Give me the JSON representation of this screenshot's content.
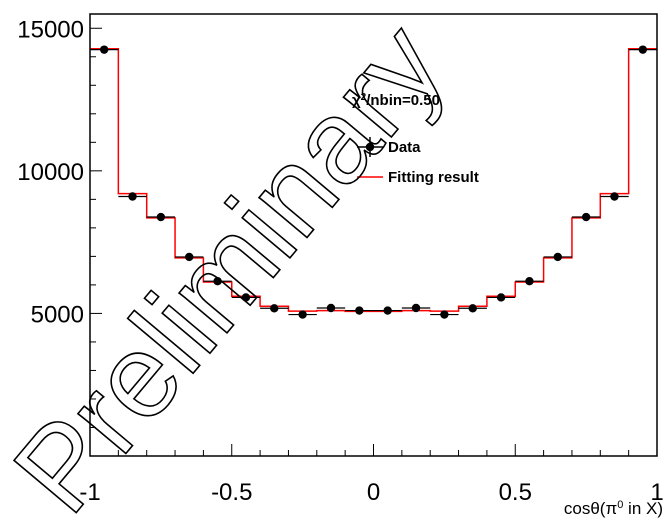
{
  "chart_data": {
    "type": "histogram",
    "title": "",
    "xlabel": "cosθ(π⁰ in X)",
    "xlabel_parts": {
      "pre": "cosθ(π",
      "sup": "0",
      "post": " in X)"
    },
    "ylabel": "",
    "xlim": [
      -1,
      1
    ],
    "ylim": [
      0,
      15500
    ],
    "x_ticks": [
      -1,
      -0.5,
      0,
      0.5,
      1
    ],
    "x_tick_labels": [
      "-1",
      "-0.5",
      "0",
      "0.5",
      "1"
    ],
    "y_ticks": [
      5000,
      10000,
      15000
    ],
    "y_tick_labels": [
      "5000",
      "10000",
      "15000"
    ],
    "bin_edges": [
      -1,
      -0.9,
      -0.8,
      -0.7,
      -0.6,
      -0.5,
      -0.4,
      -0.3,
      -0.2,
      -0.1,
      0,
      0.1,
      0.2,
      0.3,
      0.4,
      0.5,
      0.6,
      0.7,
      0.8,
      0.9,
      1
    ],
    "series": [
      {
        "name": "Data",
        "style": "points-with-errors",
        "color": "#000000",
        "x": [
          -0.95,
          -0.85,
          -0.75,
          -0.65,
          -0.55,
          -0.45,
          -0.35,
          -0.25,
          -0.15,
          -0.05,
          0.05,
          0.15,
          0.25,
          0.35,
          0.45,
          0.55,
          0.65,
          0.75,
          0.85,
          0.95
        ],
        "values": [
          14250,
          9100,
          8380,
          6980,
          6130,
          5560,
          5180,
          4960,
          5190,
          5100,
          5100,
          5190,
          4960,
          5180,
          5560,
          6130,
          6980,
          8380,
          9100,
          14250
        ]
      },
      {
        "name": "Fitting result",
        "style": "step",
        "color": "#ff0000",
        "values": [
          14280,
          9200,
          8350,
          6950,
          6100,
          5600,
          5250,
          5080,
          5100,
          5070,
          5070,
          5100,
          5080,
          5250,
          5600,
          6100,
          6950,
          8350,
          9200,
          14280
        ]
      }
    ],
    "annotations": [
      {
        "text_pre": "χ",
        "text_sup": "2",
        "text_post": "/nbin=0.50"
      }
    ],
    "watermark": "Preliminary",
    "legend_position": "top-right",
    "grid": false
  }
}
